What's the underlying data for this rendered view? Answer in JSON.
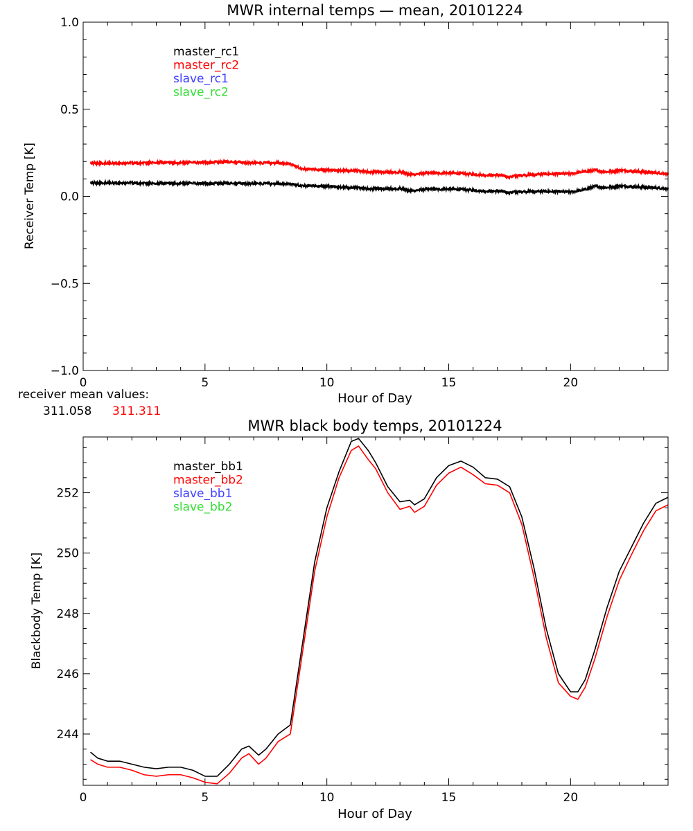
{
  "colors": {
    "black": "#000000",
    "red": "#ff0000",
    "blue": "#4040ff",
    "green": "#33dd33"
  },
  "receiver_mean": {
    "label": "receiver mean values:",
    "values": [
      {
        "text": "311.058",
        "color": "#000000"
      },
      {
        "text": "311.311",
        "color": "#ff0000"
      }
    ]
  },
  "chart_data": [
    {
      "type": "line",
      "title": "MWR internal temps — mean, 20101224",
      "xlabel": "Hour of Day",
      "ylabel": "Receiver Temp [K]",
      "xlim": [
        0,
        24
      ],
      "ylim": [
        -1.0,
        1.0
      ],
      "xticks": [
        0,
        5,
        10,
        15,
        20
      ],
      "xtick_labels": [
        "0",
        "5",
        "10",
        "15",
        "20"
      ],
      "yticks": [
        -1.0,
        -0.5,
        0.0,
        0.5,
        1.0
      ],
      "ytick_labels": [
        "−1.0",
        "−0.5",
        "0.0",
        "0.5",
        "1.0"
      ],
      "grid": false,
      "legend_position": "top-left",
      "legend": [
        {
          "name": "master_rc1",
          "color": "#000000"
        },
        {
          "name": "master_rc2",
          "color": "#ff0000"
        },
        {
          "name": "slave_rc1",
          "color": "#4040ff"
        },
        {
          "name": "slave_rc2",
          "color": "#33dd33"
        }
      ],
      "series": [
        {
          "name": "master_rc1",
          "color": "#000000",
          "noisy": true,
          "x": [
            0.3,
            1,
            2,
            3,
            4,
            5,
            6,
            7,
            8,
            8.5,
            9,
            10,
            11,
            12,
            13,
            13.5,
            14,
            15,
            16,
            16.5,
            17,
            17.5,
            18,
            19,
            20,
            20.5,
            21,
            21.5,
            22,
            23,
            24
          ],
          "y": [
            0.078,
            0.077,
            0.076,
            0.075,
            0.075,
            0.074,
            0.074,
            0.074,
            0.073,
            0.07,
            0.062,
            0.057,
            0.05,
            0.042,
            0.045,
            0.032,
            0.04,
            0.042,
            0.036,
            0.03,
            0.03,
            0.022,
            0.028,
            0.028,
            0.025,
            0.035,
            0.058,
            0.05,
            0.06,
            0.052,
            0.045
          ]
        },
        {
          "name": "master_rc2",
          "color": "#ff0000",
          "noisy": true,
          "x": [
            0.3,
            1,
            2,
            3,
            4,
            5,
            6,
            7,
            8,
            8.5,
            9,
            10,
            11,
            12,
            13,
            13.5,
            14,
            15,
            16,
            16.5,
            17,
            17.5,
            18,
            19,
            20,
            20.5,
            21,
            21.5,
            22,
            23,
            24
          ],
          "y": [
            0.192,
            0.19,
            0.19,
            0.195,
            0.193,
            0.195,
            0.197,
            0.192,
            0.192,
            0.185,
            0.158,
            0.15,
            0.148,
            0.138,
            0.14,
            0.125,
            0.133,
            0.134,
            0.127,
            0.122,
            0.122,
            0.112,
            0.122,
            0.128,
            0.13,
            0.14,
            0.15,
            0.14,
            0.15,
            0.14,
            0.13
          ]
        },
        {
          "name": "slave_rc1",
          "color": "#4040ff",
          "x": [],
          "y": []
        },
        {
          "name": "slave_rc2",
          "color": "#33dd33",
          "x": [],
          "y": []
        }
      ]
    },
    {
      "type": "line",
      "title": "MWR black body temps, 20101224",
      "xlabel": "Hour of Day",
      "ylabel": "Blackbody Temp [K]",
      "xlim": [
        0,
        24
      ],
      "ylim": [
        242.3,
        253.85
      ],
      "xticks": [
        0,
        5,
        10,
        15,
        20
      ],
      "xtick_labels": [
        "0",
        "5",
        "10",
        "15",
        "20"
      ],
      "yticks": [
        244,
        246,
        248,
        250,
        252
      ],
      "ytick_labels": [
        "244",
        "246",
        "248",
        "250",
        "252"
      ],
      "grid": false,
      "legend_position": "top-left",
      "legend": [
        {
          "name": "master_bb1",
          "color": "#000000"
        },
        {
          "name": "master_bb2",
          "color": "#ff0000"
        },
        {
          "name": "slave_bb1",
          "color": "#4040ff"
        },
        {
          "name": "slave_bb2",
          "color": "#33dd33"
        }
      ],
      "series": [
        {
          "name": "master_bb1",
          "color": "#000000",
          "x": [
            0.3,
            0.6,
            1.0,
            1.5,
            2.0,
            2.5,
            3.0,
            3.5,
            4.0,
            4.5,
            5.0,
            5.5,
            6.0,
            6.5,
            6.8,
            7.2,
            7.5,
            8.0,
            8.5,
            9.0,
            9.5,
            10.0,
            10.5,
            11.0,
            11.3,
            11.7,
            12.0,
            12.5,
            13.0,
            13.4,
            13.6,
            14.0,
            14.5,
            15.0,
            15.5,
            16.0,
            16.5,
            17.0,
            17.5,
            18.0,
            18.5,
            19.0,
            19.5,
            20.0,
            20.3,
            20.6,
            21.0,
            21.5,
            22.0,
            22.5,
            23.0,
            23.5,
            24.0
          ],
          "y": [
            243.4,
            243.2,
            243.1,
            243.1,
            243.0,
            242.9,
            242.85,
            242.9,
            242.9,
            242.8,
            242.6,
            242.6,
            243.0,
            243.5,
            243.6,
            243.3,
            243.5,
            244.0,
            244.3,
            247.0,
            249.7,
            251.5,
            252.7,
            253.7,
            253.8,
            253.4,
            253.0,
            252.2,
            251.7,
            251.75,
            251.6,
            251.8,
            252.5,
            252.9,
            253.05,
            252.85,
            252.5,
            252.45,
            252.2,
            251.2,
            249.5,
            247.5,
            246.0,
            245.4,
            245.4,
            245.8,
            246.8,
            248.2,
            249.4,
            250.2,
            251.0,
            251.65,
            251.85
          ]
        },
        {
          "name": "master_bb2",
          "color": "#ff0000",
          "x": [
            0.3,
            0.6,
            1.0,
            1.5,
            2.0,
            2.5,
            3.0,
            3.5,
            4.0,
            4.5,
            5.0,
            5.5,
            6.0,
            6.5,
            6.8,
            7.2,
            7.5,
            8.0,
            8.5,
            9.0,
            9.5,
            10.0,
            10.5,
            11.0,
            11.3,
            11.7,
            12.0,
            12.5,
            13.0,
            13.4,
            13.6,
            14.0,
            14.5,
            15.0,
            15.5,
            16.0,
            16.5,
            17.0,
            17.5,
            18.0,
            18.5,
            19.0,
            19.5,
            20.0,
            20.3,
            20.6,
            21.0,
            21.5,
            22.0,
            22.5,
            23.0,
            23.5,
            24.0
          ],
          "y": [
            243.15,
            243.0,
            242.9,
            242.9,
            242.8,
            242.65,
            242.6,
            242.65,
            242.65,
            242.55,
            242.4,
            242.35,
            242.7,
            243.2,
            243.35,
            243.0,
            243.2,
            243.75,
            244.0,
            246.7,
            249.4,
            251.2,
            252.5,
            253.4,
            253.55,
            253.1,
            252.8,
            252.0,
            251.45,
            251.55,
            251.35,
            251.55,
            252.25,
            252.65,
            252.85,
            252.6,
            252.3,
            252.25,
            252.0,
            250.95,
            249.2,
            247.2,
            245.7,
            245.25,
            245.15,
            245.55,
            246.5,
            247.9,
            249.1,
            249.95,
            250.75,
            251.4,
            251.6
          ]
        },
        {
          "name": "slave_bb1",
          "color": "#4040ff",
          "x": [],
          "y": []
        },
        {
          "name": "slave_bb2",
          "color": "#33dd33",
          "x": [],
          "y": []
        }
      ]
    }
  ]
}
